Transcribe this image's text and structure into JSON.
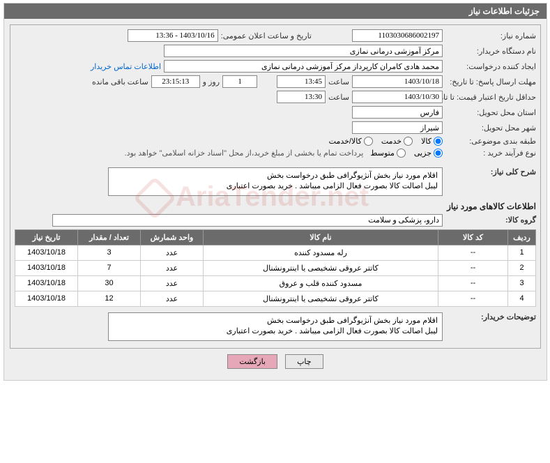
{
  "header": {
    "title": "جزئیات اطلاعات نیاز"
  },
  "form": {
    "need_no_lbl": "شماره نیاز:",
    "need_no": "1103030686002197",
    "announce_datetime_lbl": "تاریخ و ساعت اعلان عمومی:",
    "announce_datetime": "1403/10/16 - 13:36",
    "buyer_org_lbl": "نام دستگاه خریدار:",
    "buyer_org": "مرکز آموزشی درمانی نمازی",
    "requester_lbl": "ایجاد کننده درخواست:",
    "requester": "محمد هادی کامران کارپرداز مرکز آموزشی درمانی نمازی",
    "contact_link": "اطلاعات تماس خریدار",
    "deadline_lbl": "مهلت ارسال پاسخ: تا تاریخ:",
    "deadline_date": "1403/10/18",
    "time_lbl": "ساعت",
    "deadline_time": "13:45",
    "days": "1",
    "days_and": "روز و",
    "countdown": "23:15:13",
    "remaining_lbl": "ساعت باقی مانده",
    "validity_lbl": "حداقل تاریخ اعتبار قیمت: تا تاریخ:",
    "validity_date": "1403/10/30",
    "validity_time": "13:30",
    "province_lbl": "استان محل تحویل:",
    "province": "فارس",
    "city_lbl": "شهر محل تحویل:",
    "city": "شیراز",
    "category_lbl": "طبقه بندی موضوعی:",
    "radios": {
      "goods": "کالا",
      "service": "خدمت",
      "both": "کالا/خدمت"
    },
    "process_lbl": "نوع فرآیند خرید :",
    "process_radios": {
      "partial": "جزیی",
      "medium": "متوسط"
    },
    "payment_note": "پرداخت تمام یا بخشی از مبلغ خرید،از محل \"اسناد خزانه اسلامی\" خواهد بود.",
    "overview_lbl": "شرح کلی نیاز:",
    "overview_text": "اقلام مورد نیاز بخش آنژیوگرافی طبق درخواست بخش\nلیبل اصالت کالا بصورت فعال الزامی میباشد . خرید بصورت اعتباری",
    "items_section": "اطلاعات کالاهای مورد نیاز",
    "group_lbl": "گروه کالا:",
    "group": "دارو، پزشکی و سلامت",
    "buyer_notes_lbl": "توضیحات خریدار:",
    "buyer_notes": "اقلام مورد نیاز بخش آنژیوگرافی طبق درخواست بخش\nلیبل اصالت کالا بصورت فعال الزامی میباشد . خرید بصورت اعتباری"
  },
  "table": {
    "headers": {
      "row": "ردیف",
      "code": "کد کالا",
      "name": "نام کالا",
      "unit": "واحد شمارش",
      "qty": "تعداد / مقدار",
      "date": "تاریخ نیاز"
    },
    "rows": [
      {
        "n": "1",
        "code": "--",
        "name": "رله مسدود کننده",
        "unit": "عدد",
        "qty": "3",
        "date": "1403/10/18"
      },
      {
        "n": "2",
        "code": "--",
        "name": "کاتتر عروقی تشخیصی یا اینترونشنال",
        "unit": "عدد",
        "qty": "7",
        "date": "1403/10/18"
      },
      {
        "n": "3",
        "code": "--",
        "name": "مسدود کننده قلب و عروق",
        "unit": "عدد",
        "qty": "30",
        "date": "1403/10/18"
      },
      {
        "n": "4",
        "code": "--",
        "name": "کاتتر عروقی تشخیصی یا اینترونشنال",
        "unit": "عدد",
        "qty": "12",
        "date": "1403/10/18"
      }
    ]
  },
  "buttons": {
    "print": "چاپ",
    "back": "بازگشت"
  },
  "watermark": "AriaTender.net"
}
